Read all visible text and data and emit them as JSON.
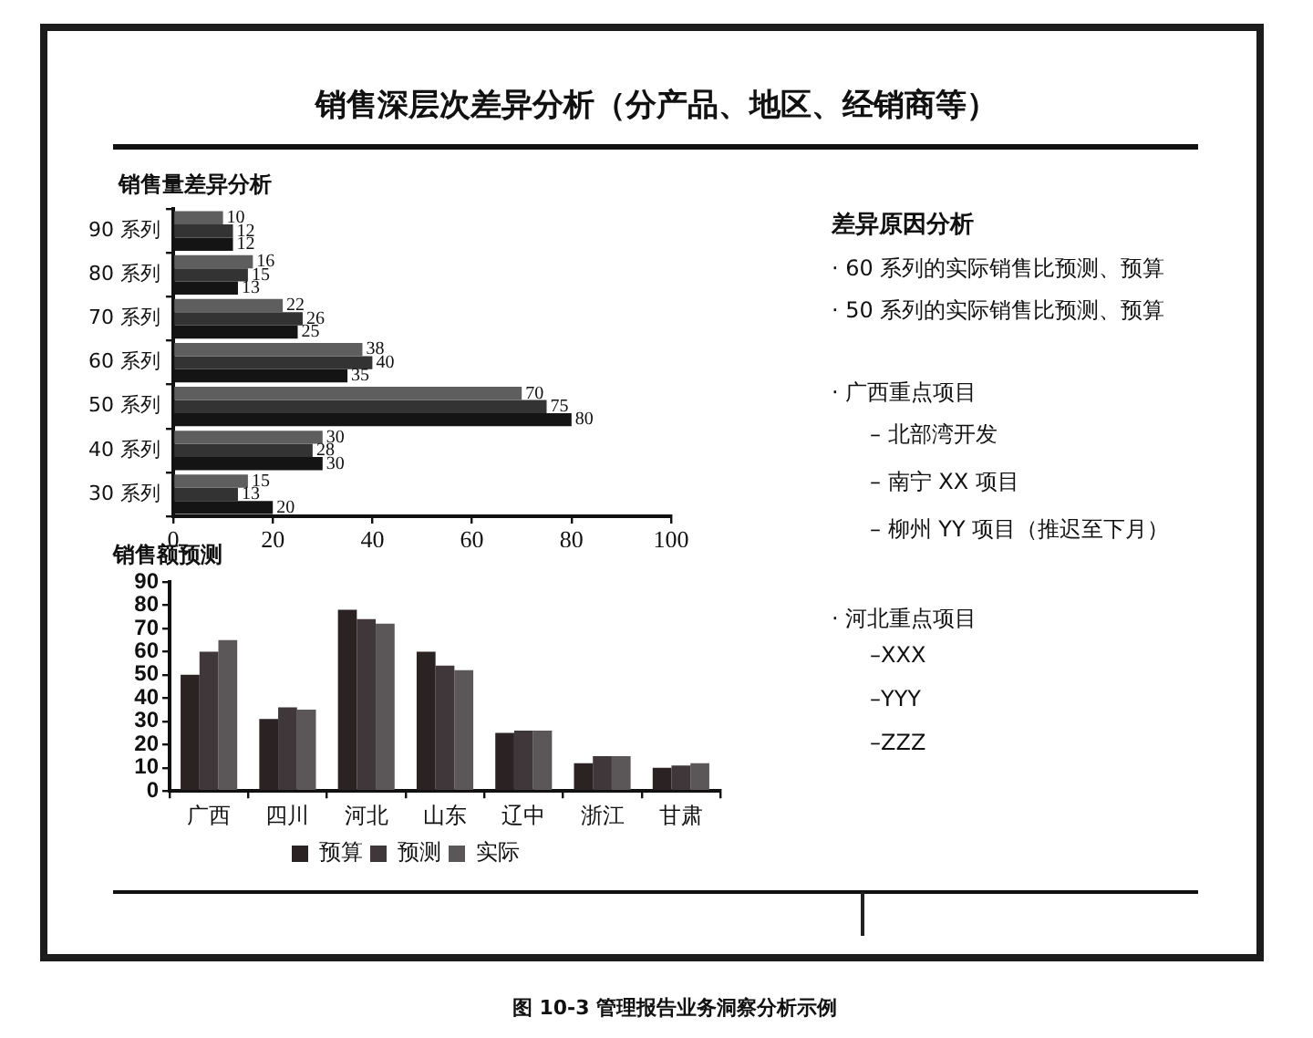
{
  "chart_data": [
    {
      "type": "other",
      "title": "销售深层次差异分析（分产品、地区、经销商等）"
    },
    {
      "type": "bar",
      "orientation": "horizontal",
      "title": "销售量差异分析",
      "categories": [
        "90 系列",
        "80 系列",
        "70 系列",
        "60 系列",
        "50 系列",
        "40 系列",
        "30 系列"
      ],
      "series": [
        {
          "color": "#5e5e5e",
          "values": [
            10,
            16,
            22,
            38,
            70,
            30,
            15
          ]
        },
        {
          "color": "#333333",
          "values": [
            12,
            15,
            26,
            40,
            75,
            28,
            13
          ]
        },
        {
          "color": "#141414",
          "values": [
            12,
            13,
            25,
            35,
            80,
            30,
            20
          ]
        }
      ],
      "xlim": [
        0,
        100
      ],
      "xticks": [
        0,
        20,
        40,
        60,
        80,
        100
      ],
      "data_labels": true
    },
    {
      "type": "bar",
      "title": "销售额预测",
      "categories": [
        "广西",
        "四川",
        "河北",
        "山东",
        "辽中",
        "浙江",
        "甘肃"
      ],
      "series": [
        {
          "name": "预算",
          "color": "#2b2224",
          "values": [
            50,
            31,
            78,
            60,
            25,
            12,
            10
          ]
        },
        {
          "name": "预测",
          "color": "#3f3739",
          "values": [
            60,
            36,
            74,
            54,
            26,
            15,
            11
          ]
        },
        {
          "name": "实际",
          "color": "#5b5758",
          "values": [
            65,
            35,
            72,
            52,
            26,
            15,
            12
          ]
        }
      ],
      "ylim": [
        0,
        90
      ],
      "yticks": [
        0,
        10,
        20,
        30,
        40,
        50,
        60,
        70,
        80,
        90
      ],
      "legend": "bottom"
    },
    {
      "type": "other",
      "title": "差异原因分析",
      "annotations": [
        "· 60 系列的实际销售比预测、预算",
        "· 50 系列的实际销售比预测、预算",
        "· 广西重点项目",
        "– 北部湾开发",
        "– 南宁 XX 项目",
        "– 柳州 YY 项目（推迟至下月）",
        "· 河北重点项目",
        "–XXX",
        "–YYY",
        "–ZZZ"
      ]
    },
    {
      "type": "other",
      "annotations": [
        "图 10-3 管理报告业务洞察分析示例"
      ]
    }
  ]
}
